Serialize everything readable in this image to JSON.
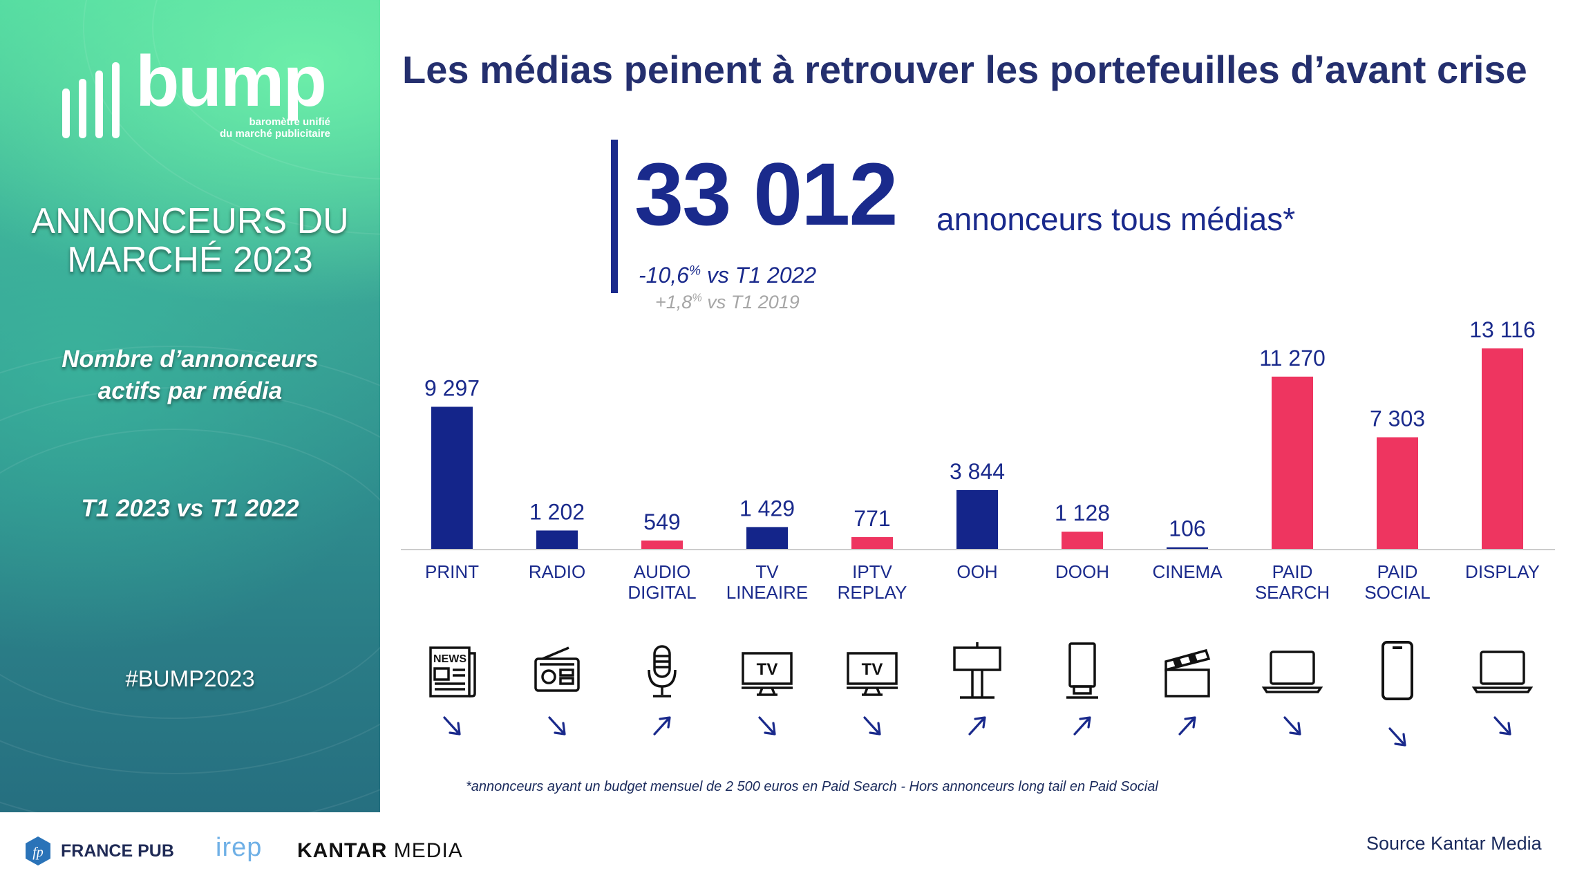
{
  "sidebar": {
    "logo": {
      "word": "bump",
      "tagline_line1": "baromètre unifié",
      "tagline_line2": "du marché publicitaire"
    },
    "title_line1": "ANNONCEURS DU",
    "title_line2": "MARCHÉ 2023",
    "subtitle_line1": "Nombre d’annonceurs",
    "subtitle_line2": "actifs par média",
    "period": "T1 2023 vs T1 2022",
    "hashtag": "#BUMP2023"
  },
  "headline": "Les médias peinent à retrouver les portefeuilles d’avant crise",
  "kpi": {
    "value": "33 012",
    "label": "annonceurs tous médias*",
    "var1_number": "-10,6",
    "var1_pct": "%",
    "var1_text": " vs T1 2022",
    "var2_number": "+1,8",
    "var2_pct": "%",
    "var2_text": " vs T1 2019"
  },
  "chart_data": {
    "type": "bar",
    "title": "Nombre d’annonceurs actifs par média",
    "categories": [
      [
        "PRINT"
      ],
      [
        "RADIO"
      ],
      [
        "AUDIO",
        "DIGITAL"
      ],
      [
        "TV",
        "LINEAIRE"
      ],
      [
        "IPTV",
        "REPLAY"
      ],
      [
        "OOH"
      ],
      [
        "DOOH"
      ],
      [
        "CINEMA"
      ],
      [
        "PAID",
        "SEARCH"
      ],
      [
        "PAID",
        "SOCIAL"
      ],
      [
        "DISPLAY"
      ]
    ],
    "values": [
      9297,
      1202,
      549,
      1429,
      771,
      3844,
      1128,
      106,
      11270,
      7303,
      13116
    ],
    "value_labels": [
      "9 297",
      "1 202",
      "549",
      "1 429",
      "771",
      "3 844",
      "1 128",
      "106",
      "11 270",
      "7 303",
      "13 116"
    ],
    "groups": [
      "traditional",
      "traditional",
      "digital",
      "traditional",
      "digital",
      "traditional",
      "digital",
      "traditional",
      "digital",
      "digital",
      "digital"
    ],
    "trends": [
      "down",
      "down",
      "up",
      "down",
      "down",
      "up",
      "up",
      "up",
      "down",
      "down",
      "down"
    ],
    "ylim": [
      0,
      13116
    ],
    "xlabel": "",
    "ylabel": "",
    "grid": false
  },
  "icons": [
    "newspaper-icon",
    "radio-icon",
    "microphone-icon",
    "tv-icon",
    "tv-icon",
    "billboard-icon",
    "digital-billboard-icon",
    "clapperboard-icon",
    "laptop-icon",
    "smartphone-icon",
    "laptop-icon"
  ],
  "colors": {
    "traditional": "#14258a",
    "digital": "#ee3560",
    "text_dark_blue": "#1a2a8c",
    "headline": "#242f6e",
    "axis": "#cccccc"
  },
  "footnote": "*annonceurs ayant un budget mensuel de 2 500 euros en Paid Search - Hors annonceurs long tail en Paid Social",
  "footer": {
    "logos": {
      "france_pub": "FRANCE PUB",
      "france_pub_mark": "fp",
      "irep": "irep",
      "kantar_bold": "KANTAR",
      "kantar_light": " MEDIA"
    },
    "source": "Source Kantar Media"
  }
}
